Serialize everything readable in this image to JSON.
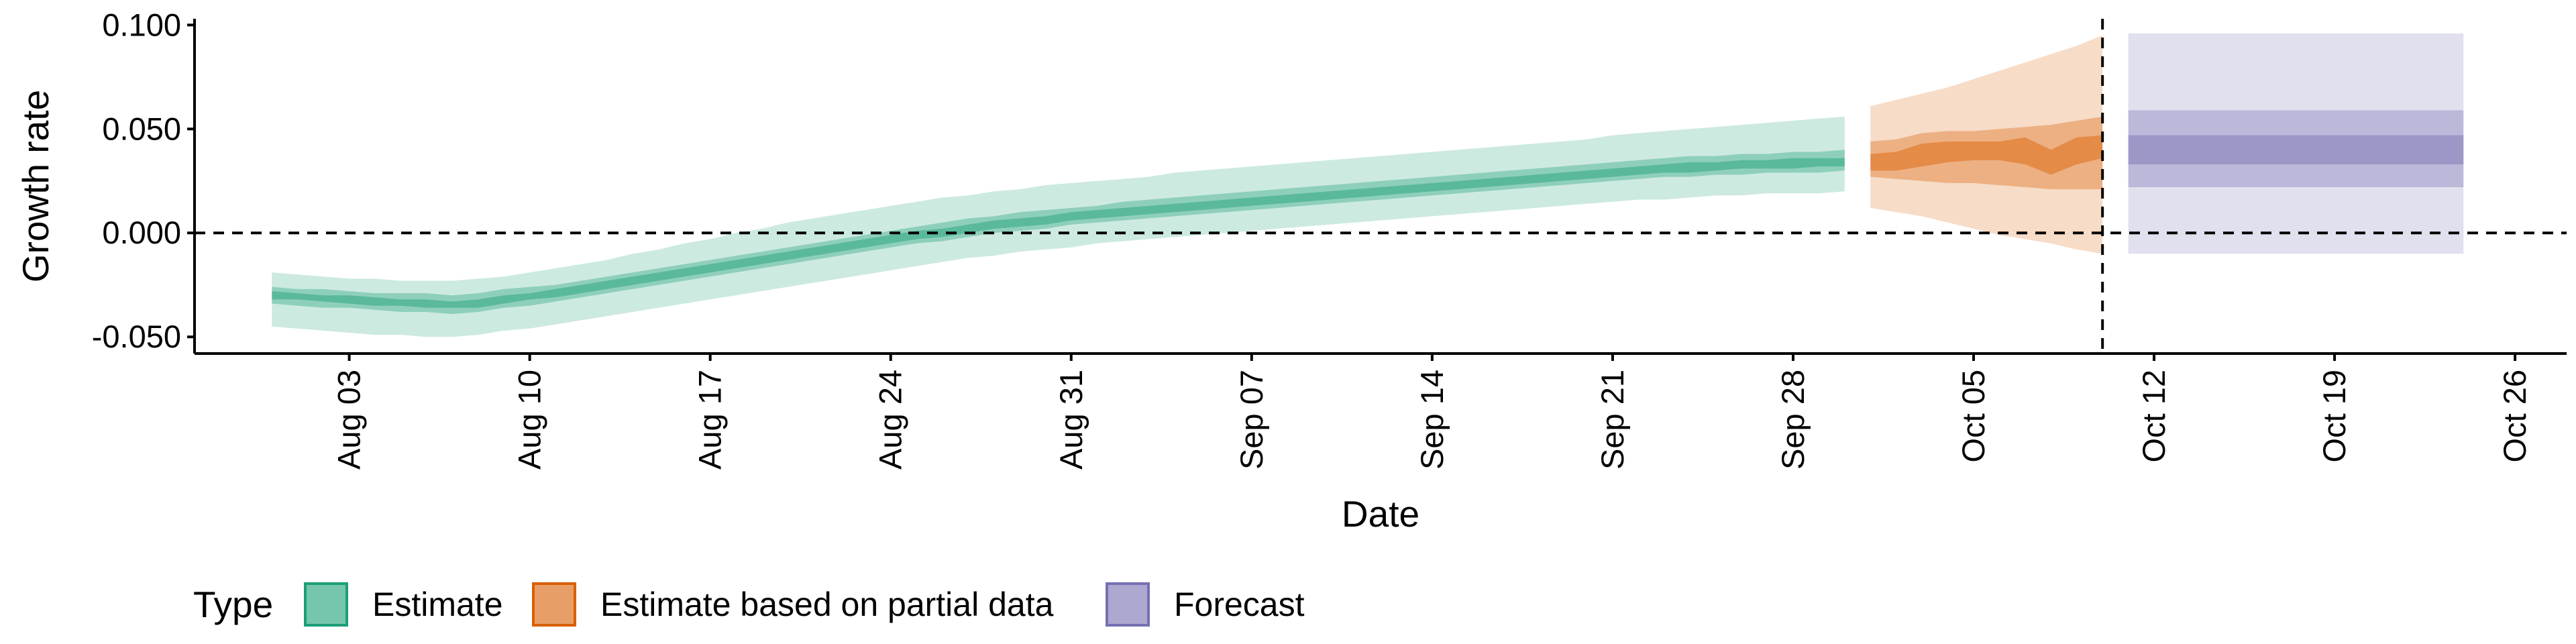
{
  "chart_data": {
    "type": "area",
    "xlabel": "Date",
    "ylabel": "Growth rate",
    "x_range": [
      "2021-07-28",
      "2021-10-28"
    ],
    "ylim": [
      -0.058,
      0.103
    ],
    "y_ticks": [
      {
        "value": 0.1,
        "label": "0.100"
      },
      {
        "value": 0.05,
        "label": "0.050"
      },
      {
        "value": 0.0,
        "label": "0.000"
      },
      {
        "value": -0.05,
        "label": "-0.050"
      }
    ],
    "x_ticks": [
      {
        "date": "2021-08-03",
        "label": "Aug 03"
      },
      {
        "date": "2021-08-10",
        "label": "Aug 10"
      },
      {
        "date": "2021-08-17",
        "label": "Aug 17"
      },
      {
        "date": "2021-08-24",
        "label": "Aug 24"
      },
      {
        "date": "2021-08-31",
        "label": "Aug 31"
      },
      {
        "date": "2021-09-07",
        "label": "Sep 07"
      },
      {
        "date": "2021-09-14",
        "label": "Sep 14"
      },
      {
        "date": "2021-09-21",
        "label": "Sep 21"
      },
      {
        "date": "2021-09-28",
        "label": "Sep 28"
      },
      {
        "date": "2021-10-05",
        "label": "Oct 05"
      },
      {
        "date": "2021-10-12",
        "label": "Oct 12"
      },
      {
        "date": "2021-10-19",
        "label": "Oct 19"
      },
      {
        "date": "2021-10-26",
        "label": "Oct 26"
      }
    ],
    "reference_lines": {
      "horizontal_y": 0.0,
      "vertical_date": "2021-10-10",
      "style": "dashed"
    },
    "grid": false,
    "legend_position": "bottom-left",
    "legend_title": "Type",
    "series": [
      {
        "name": "Estimate",
        "color": "#1b9e77",
        "points": [
          {
            "date": "2021-07-31",
            "lo90": -0.045,
            "lo50": -0.034,
            "lo20": -0.032,
            "hi20": -0.028,
            "hi50": -0.026,
            "hi90": -0.019
          },
          {
            "date": "2021-08-01",
            "lo90": -0.046,
            "lo50": -0.035,
            "lo20": -0.032,
            "hi20": -0.029,
            "hi50": -0.027,
            "hi90": -0.02
          },
          {
            "date": "2021-08-02",
            "lo90": -0.047,
            "lo50": -0.036,
            "lo20": -0.033,
            "hi20": -0.03,
            "hi50": -0.027,
            "hi90": -0.021
          },
          {
            "date": "2021-08-03",
            "lo90": -0.048,
            "lo50": -0.036,
            "lo20": -0.034,
            "hi20": -0.03,
            "hi50": -0.028,
            "hi90": -0.022
          },
          {
            "date": "2021-08-04",
            "lo90": -0.049,
            "lo50": -0.037,
            "lo20": -0.035,
            "hi20": -0.031,
            "hi50": -0.029,
            "hi90": -0.022
          },
          {
            "date": "2021-08-05",
            "lo90": -0.049,
            "lo50": -0.038,
            "lo20": -0.035,
            "hi20": -0.032,
            "hi50": -0.029,
            "hi90": -0.023
          },
          {
            "date": "2021-08-06",
            "lo90": -0.05,
            "lo50": -0.038,
            "lo20": -0.036,
            "hi20": -0.032,
            "hi50": -0.029,
            "hi90": -0.023
          },
          {
            "date": "2021-08-07",
            "lo90": -0.05,
            "lo50": -0.039,
            "lo20": -0.036,
            "hi20": -0.033,
            "hi50": -0.03,
            "hi90": -0.023
          },
          {
            "date": "2021-08-08",
            "lo90": -0.049,
            "lo50": -0.038,
            "lo20": -0.036,
            "hi20": -0.032,
            "hi50": -0.029,
            "hi90": -0.022
          },
          {
            "date": "2021-08-09",
            "lo90": -0.047,
            "lo50": -0.036,
            "lo20": -0.034,
            "hi20": -0.03,
            "hi50": -0.027,
            "hi90": -0.021
          },
          {
            "date": "2021-08-10",
            "lo90": -0.046,
            "lo50": -0.035,
            "lo20": -0.032,
            "hi20": -0.029,
            "hi50": -0.026,
            "hi90": -0.019
          },
          {
            "date": "2021-08-11",
            "lo90": -0.044,
            "lo50": -0.033,
            "lo20": -0.031,
            "hi20": -0.027,
            "hi50": -0.025,
            "hi90": -0.017
          },
          {
            "date": "2021-08-12",
            "lo90": -0.042,
            "lo50": -0.031,
            "lo20": -0.029,
            "hi20": -0.025,
            "hi50": -0.023,
            "hi90": -0.015
          },
          {
            "date": "2021-08-13",
            "lo90": -0.04,
            "lo50": -0.029,
            "lo20": -0.027,
            "hi20": -0.023,
            "hi50": -0.021,
            "hi90": -0.013
          },
          {
            "date": "2021-08-14",
            "lo90": -0.038,
            "lo50": -0.027,
            "lo20": -0.025,
            "hi20": -0.021,
            "hi50": -0.019,
            "hi90": -0.01
          },
          {
            "date": "2021-08-15",
            "lo90": -0.036,
            "lo50": -0.025,
            "lo20": -0.023,
            "hi20": -0.019,
            "hi50": -0.017,
            "hi90": -0.008
          },
          {
            "date": "2021-08-16",
            "lo90": -0.034,
            "lo50": -0.023,
            "lo20": -0.021,
            "hi20": -0.017,
            "hi50": -0.015,
            "hi90": -0.005
          },
          {
            "date": "2021-08-17",
            "lo90": -0.032,
            "lo50": -0.021,
            "lo20": -0.019,
            "hi20": -0.015,
            "hi50": -0.013,
            "hi90": -0.003
          },
          {
            "date": "2021-08-18",
            "lo90": -0.03,
            "lo50": -0.019,
            "lo20": -0.017,
            "hi20": -0.013,
            "hi50": -0.011,
            "hi90": 0.0
          },
          {
            "date": "2021-08-19",
            "lo90": -0.028,
            "lo50": -0.017,
            "lo20": -0.015,
            "hi20": -0.011,
            "hi50": -0.009,
            "hi90": 0.002
          },
          {
            "date": "2021-08-20",
            "lo90": -0.026,
            "lo50": -0.015,
            "lo20": -0.013,
            "hi20": -0.009,
            "hi50": -0.007,
            "hi90": 0.005
          },
          {
            "date": "2021-08-21",
            "lo90": -0.024,
            "lo50": -0.013,
            "lo20": -0.011,
            "hi20": -0.007,
            "hi50": -0.005,
            "hi90": 0.007
          },
          {
            "date": "2021-08-22",
            "lo90": -0.022,
            "lo50": -0.011,
            "lo20": -0.009,
            "hi20": -0.005,
            "hi50": -0.003,
            "hi90": 0.009
          },
          {
            "date": "2021-08-23",
            "lo90": -0.02,
            "lo50": -0.009,
            "lo20": -0.007,
            "hi20": -0.003,
            "hi50": -0.001,
            "hi90": 0.011
          },
          {
            "date": "2021-08-24",
            "lo90": -0.018,
            "lo50": -0.007,
            "lo20": -0.005,
            "hi20": -0.001,
            "hi50": 0.001,
            "hi90": 0.013
          },
          {
            "date": "2021-08-25",
            "lo90": -0.016,
            "lo50": -0.005,
            "lo20": -0.003,
            "hi20": 0.001,
            "hi50": 0.003,
            "hi90": 0.015
          },
          {
            "date": "2021-08-26",
            "lo90": -0.014,
            "lo50": -0.004,
            "lo20": -0.002,
            "hi20": 0.002,
            "hi50": 0.005,
            "hi90": 0.017
          },
          {
            "date": "2021-08-27",
            "lo90": -0.012,
            "lo50": -0.002,
            "lo20": 0.0,
            "hi20": 0.004,
            "hi50": 0.007,
            "hi90": 0.018
          },
          {
            "date": "2021-08-28",
            "lo90": -0.011,
            "lo50": 0.0,
            "lo20": 0.002,
            "hi20": 0.006,
            "hi50": 0.008,
            "hi90": 0.02
          },
          {
            "date": "2021-08-29",
            "lo90": -0.009,
            "lo50": 0.001,
            "lo20": 0.003,
            "hi20": 0.007,
            "hi50": 0.01,
            "hi90": 0.021
          },
          {
            "date": "2021-08-30",
            "lo90": -0.008,
            "lo50": 0.002,
            "lo20": 0.004,
            "hi20": 0.008,
            "hi50": 0.011,
            "hi90": 0.023
          },
          {
            "date": "2021-08-31",
            "lo90": -0.007,
            "lo50": 0.004,
            "lo20": 0.006,
            "hi20": 0.01,
            "hi50": 0.012,
            "hi90": 0.024
          },
          {
            "date": "2021-09-01",
            "lo90": -0.005,
            "lo50": 0.005,
            "lo20": 0.007,
            "hi20": 0.011,
            "hi50": 0.013,
            "hi90": 0.025
          },
          {
            "date": "2021-09-02",
            "lo90": -0.004,
            "lo50": 0.006,
            "lo20": 0.008,
            "hi20": 0.012,
            "hi50": 0.015,
            "hi90": 0.026
          },
          {
            "date": "2021-09-03",
            "lo90": -0.003,
            "lo50": 0.007,
            "lo20": 0.009,
            "hi20": 0.013,
            "hi50": 0.016,
            "hi90": 0.027
          },
          {
            "date": "2021-09-04",
            "lo90": -0.002,
            "lo50": 0.008,
            "lo20": 0.01,
            "hi20": 0.014,
            "hi50": 0.017,
            "hi90": 0.029
          },
          {
            "date": "2021-09-05",
            "lo90": -0.001,
            "lo50": 0.009,
            "lo20": 0.011,
            "hi20": 0.015,
            "hi50": 0.018,
            "hi90": 0.03
          },
          {
            "date": "2021-09-06",
            "lo90": 0.0,
            "lo50": 0.01,
            "lo20": 0.012,
            "hi20": 0.016,
            "hi50": 0.019,
            "hi90": 0.031
          },
          {
            "date": "2021-09-07",
            "lo90": 0.001,
            "lo50": 0.011,
            "lo20": 0.013,
            "hi20": 0.017,
            "hi50": 0.02,
            "hi90": 0.032
          },
          {
            "date": "2021-09-08",
            "lo90": 0.002,
            "lo50": 0.012,
            "lo20": 0.014,
            "hi20": 0.018,
            "hi50": 0.021,
            "hi90": 0.033
          },
          {
            "date": "2021-09-09",
            "lo90": 0.003,
            "lo50": 0.013,
            "lo20": 0.015,
            "hi20": 0.019,
            "hi50": 0.022,
            "hi90": 0.034
          },
          {
            "date": "2021-09-10",
            "lo90": 0.004,
            "lo50": 0.014,
            "lo20": 0.016,
            "hi20": 0.02,
            "hi50": 0.023,
            "hi90": 0.035
          },
          {
            "date": "2021-09-11",
            "lo90": 0.005,
            "lo50": 0.015,
            "lo20": 0.017,
            "hi20": 0.021,
            "hi50": 0.024,
            "hi90": 0.036
          },
          {
            "date": "2021-09-12",
            "lo90": 0.006,
            "lo50": 0.016,
            "lo20": 0.018,
            "hi20": 0.022,
            "hi50": 0.025,
            "hi90": 0.037
          },
          {
            "date": "2021-09-13",
            "lo90": 0.007,
            "lo50": 0.017,
            "lo20": 0.019,
            "hi20": 0.023,
            "hi50": 0.026,
            "hi90": 0.038
          },
          {
            "date": "2021-09-14",
            "lo90": 0.008,
            "lo50": 0.018,
            "lo20": 0.02,
            "hi20": 0.024,
            "hi50": 0.027,
            "hi90": 0.039
          },
          {
            "date": "2021-09-15",
            "lo90": 0.009,
            "lo50": 0.019,
            "lo20": 0.021,
            "hi20": 0.025,
            "hi50": 0.028,
            "hi90": 0.04
          },
          {
            "date": "2021-09-16",
            "lo90": 0.01,
            "lo50": 0.02,
            "lo20": 0.022,
            "hi20": 0.026,
            "hi50": 0.029,
            "hi90": 0.041
          },
          {
            "date": "2021-09-17",
            "lo90": 0.011,
            "lo50": 0.021,
            "lo20": 0.023,
            "hi20": 0.027,
            "hi50": 0.03,
            "hi90": 0.042
          },
          {
            "date": "2021-09-18",
            "lo90": 0.012,
            "lo50": 0.022,
            "lo20": 0.024,
            "hi20": 0.028,
            "hi50": 0.031,
            "hi90": 0.043
          },
          {
            "date": "2021-09-19",
            "lo90": 0.013,
            "lo50": 0.023,
            "lo20": 0.025,
            "hi20": 0.029,
            "hi50": 0.032,
            "hi90": 0.044
          },
          {
            "date": "2021-09-20",
            "lo90": 0.014,
            "lo50": 0.024,
            "lo20": 0.026,
            "hi20": 0.03,
            "hi50": 0.033,
            "hi90": 0.045
          },
          {
            "date": "2021-09-21",
            "lo90": 0.015,
            "lo50": 0.025,
            "lo20": 0.027,
            "hi20": 0.031,
            "hi50": 0.034,
            "hi90": 0.047
          },
          {
            "date": "2021-09-22",
            "lo90": 0.016,
            "lo50": 0.026,
            "lo20": 0.028,
            "hi20": 0.032,
            "hi50": 0.035,
            "hi90": 0.048
          },
          {
            "date": "2021-09-23",
            "lo90": 0.016,
            "lo50": 0.027,
            "lo20": 0.029,
            "hi20": 0.033,
            "hi50": 0.036,
            "hi90": 0.049
          },
          {
            "date": "2021-09-24",
            "lo90": 0.017,
            "lo50": 0.027,
            "lo20": 0.029,
            "hi20": 0.034,
            "hi50": 0.037,
            "hi90": 0.05
          },
          {
            "date": "2021-09-25",
            "lo90": 0.018,
            "lo50": 0.028,
            "lo20": 0.03,
            "hi20": 0.034,
            "hi50": 0.037,
            "hi90": 0.051
          },
          {
            "date": "2021-09-26",
            "lo90": 0.018,
            "lo50": 0.028,
            "lo20": 0.031,
            "hi20": 0.035,
            "hi50": 0.038,
            "hi90": 0.052
          },
          {
            "date": "2021-09-27",
            "lo90": 0.019,
            "lo50": 0.029,
            "lo20": 0.031,
            "hi20": 0.035,
            "hi50": 0.038,
            "hi90": 0.053
          },
          {
            "date": "2021-09-28",
            "lo90": 0.019,
            "lo50": 0.029,
            "lo20": 0.031,
            "hi20": 0.036,
            "hi50": 0.039,
            "hi90": 0.054
          },
          {
            "date": "2021-09-29",
            "lo90": 0.019,
            "lo50": 0.029,
            "lo20": 0.032,
            "hi20": 0.036,
            "hi50": 0.039,
            "hi90": 0.055
          },
          {
            "date": "2021-09-30",
            "lo90": 0.02,
            "lo50": 0.03,
            "lo20": 0.032,
            "hi20": 0.036,
            "hi50": 0.04,
            "hi90": 0.056
          }
        ]
      },
      {
        "name": "Estimate based on partial data",
        "color": "#d95f02",
        "points": [
          {
            "date": "2021-10-01",
            "lo90": 0.012,
            "lo50": 0.027,
            "lo20": 0.03,
            "hi20": 0.038,
            "hi50": 0.044,
            "hi90": 0.061
          },
          {
            "date": "2021-10-02",
            "lo90": 0.01,
            "lo50": 0.026,
            "lo20": 0.03,
            "hi20": 0.039,
            "hi50": 0.045,
            "hi90": 0.064
          },
          {
            "date": "2021-10-03",
            "lo90": 0.008,
            "lo50": 0.025,
            "lo20": 0.032,
            "hi20": 0.043,
            "hi50": 0.048,
            "hi90": 0.067
          },
          {
            "date": "2021-10-04",
            "lo90": 0.005,
            "lo50": 0.024,
            "lo20": 0.034,
            "hi20": 0.044,
            "hi50": 0.049,
            "hi90": 0.07
          },
          {
            "date": "2021-10-05",
            "lo90": 0.002,
            "lo50": 0.024,
            "lo20": 0.035,
            "hi20": 0.044,
            "hi50": 0.049,
            "hi90": 0.074
          },
          {
            "date": "2021-10-06",
            "lo90": -0.001,
            "lo50": 0.023,
            "lo20": 0.035,
            "hi20": 0.044,
            "hi50": 0.05,
            "hi90": 0.078
          },
          {
            "date": "2021-10-07",
            "lo90": -0.003,
            "lo50": 0.022,
            "lo20": 0.033,
            "hi20": 0.046,
            "hi50": 0.051,
            "hi90": 0.082
          },
          {
            "date": "2021-10-08",
            "lo90": -0.005,
            "lo50": 0.021,
            "lo20": 0.028,
            "hi20": 0.04,
            "hi50": 0.052,
            "hi90": 0.086
          },
          {
            "date": "2021-10-09",
            "lo90": -0.008,
            "lo50": 0.021,
            "lo20": 0.033,
            "hi20": 0.046,
            "hi50": 0.054,
            "hi90": 0.09
          },
          {
            "date": "2021-10-10",
            "lo90": -0.01,
            "lo50": 0.021,
            "lo20": 0.036,
            "hi20": 0.047,
            "hi50": 0.056,
            "hi90": 0.095
          }
        ]
      },
      {
        "name": "Forecast",
        "color": "#7570b3",
        "points": [
          {
            "date": "2021-10-11",
            "lo90": -0.01,
            "lo50": 0.022,
            "lo20": 0.033,
            "hi20": 0.047,
            "hi50": 0.059,
            "hi90": 0.096
          },
          {
            "date": "2021-10-24",
            "lo90": -0.01,
            "lo50": 0.022,
            "lo20": 0.033,
            "hi20": 0.047,
            "hi50": 0.059,
            "hi90": 0.096
          }
        ]
      }
    ]
  }
}
